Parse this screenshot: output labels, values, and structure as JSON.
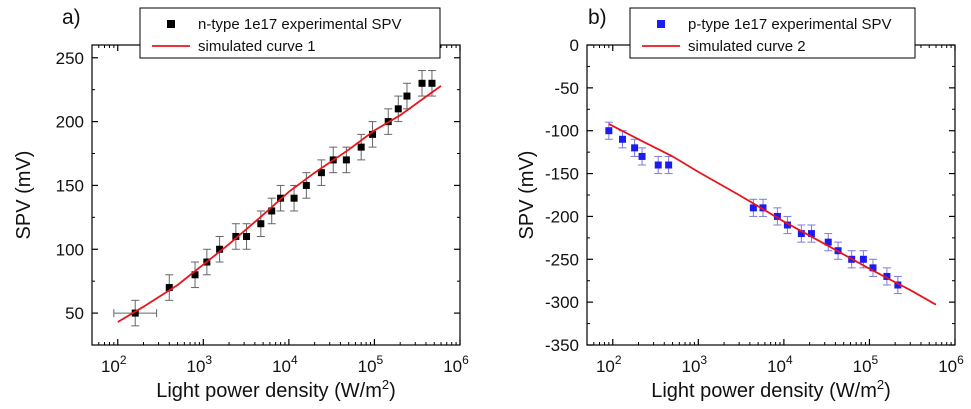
{
  "chart_data": [
    {
      "type": "scatter",
      "panel_label": "a)",
      "xlabel": "Light power density (W/m",
      "xlabel_sup": "2",
      "xlabel_end": ")",
      "ylabel": "SPV (mV)",
      "xscale": "log",
      "xlim": [
        50,
        1000000
      ],
      "ylim": [
        25,
        260
      ],
      "yticks": [
        50,
        100,
        150,
        200,
        250
      ],
      "ytick_labels": [
        "50",
        "100",
        "150",
        "200",
        "250"
      ],
      "xtick_labels": [
        {
          "base": "10",
          "exp": "2"
        },
        {
          "base": "10",
          "exp": "3"
        },
        {
          "base": "10",
          "exp": "4"
        },
        {
          "base": "10",
          "exp": "5"
        },
        {
          "base": "10",
          "exp": "6"
        }
      ],
      "grid": false,
      "legend_position": "top-right",
      "series": [
        {
          "name": "n-type 1e17 experimental SPV",
          "kind": "scatter",
          "color": "#000000",
          "points": [
            {
              "x": 160,
              "y": 50,
              "yerr": 10,
              "xerr": 0.25
            },
            {
              "x": 400,
              "y": 70,
              "yerr": 10
            },
            {
              "x": 800,
              "y": 80,
              "yerr": 10
            },
            {
              "x": 1100,
              "y": 90,
              "yerr": 10
            },
            {
              "x": 1550,
              "y": 100,
              "yerr": 10
            },
            {
              "x": 2400,
              "y": 110,
              "yerr": 10
            },
            {
              "x": 3200,
              "y": 110,
              "yerr": 10
            },
            {
              "x": 4700,
              "y": 120,
              "yerr": 10
            },
            {
              "x": 6300,
              "y": 130,
              "yerr": 10
            },
            {
              "x": 8000,
              "y": 140,
              "yerr": 10
            },
            {
              "x": 11500,
              "y": 140,
              "yerr": 10
            },
            {
              "x": 16000,
              "y": 150,
              "yerr": 10
            },
            {
              "x": 24000,
              "y": 160,
              "yerr": 10
            },
            {
              "x": 33000,
              "y": 170,
              "yerr": 10
            },
            {
              "x": 47000,
              "y": 170,
              "yerr": 10
            },
            {
              "x": 70000,
              "y": 180,
              "yerr": 10
            },
            {
              "x": 95000,
              "y": 190,
              "yerr": 10
            },
            {
              "x": 145000,
              "y": 200,
              "yerr": 10
            },
            {
              "x": 190000,
              "y": 210,
              "yerr": 10
            },
            {
              "x": 240000,
              "y": 220,
              "yerr": 10
            },
            {
              "x": 360000,
              "y": 230,
              "yerr": 10
            },
            {
              "x": 470000,
              "y": 230,
              "yerr": 10
            }
          ]
        },
        {
          "name": "simulated curve 1",
          "kind": "line",
          "color": "#e8141c",
          "points": [
            {
              "x": 100,
              "y": 43
            },
            {
              "x": 200,
              "y": 55
            },
            {
              "x": 500,
              "y": 72
            },
            {
              "x": 1000,
              "y": 88
            },
            {
              "x": 2000,
              "y": 104
            },
            {
              "x": 5000,
              "y": 127
            },
            {
              "x": 10000,
              "y": 145
            },
            {
              "x": 20000,
              "y": 160
            },
            {
              "x": 50000,
              "y": 178
            },
            {
              "x": 100000,
              "y": 193
            },
            {
              "x": 200000,
              "y": 205
            },
            {
              "x": 600000,
              "y": 228
            }
          ]
        }
      ]
    },
    {
      "type": "scatter",
      "panel_label": "b)",
      "xlabel": "Light power density (W/m",
      "xlabel_sup": "2",
      "xlabel_end": ")",
      "ylabel": "SPV (mV)",
      "xscale": "log",
      "xlim": [
        50,
        1000000
      ],
      "ylim": [
        -350,
        0
      ],
      "yticks": [
        0,
        -50,
        -100,
        -150,
        -200,
        -250,
        -300,
        -350
      ],
      "ytick_labels": [
        "0",
        "-50",
        "-100",
        "-150",
        "-200",
        "-250",
        "-300",
        "-350"
      ],
      "xtick_labels": [
        {
          "base": "10",
          "exp": "2"
        },
        {
          "base": "10",
          "exp": "3"
        },
        {
          "base": "10",
          "exp": "4"
        },
        {
          "base": "10",
          "exp": "5"
        },
        {
          "base": "10",
          "exp": "6"
        }
      ],
      "grid": false,
      "legend_position": "top-right",
      "series": [
        {
          "name": "p-type 1e17 experimental SPV",
          "kind": "scatter",
          "color": "#1c1cf0",
          "points": [
            {
              "x": 90,
              "y": -100,
              "yerr": 10
            },
            {
              "x": 130,
              "y": -110,
              "yerr": 10
            },
            {
              "x": 180,
              "y": -120,
              "yerr": 10
            },
            {
              "x": 220,
              "y": -130,
              "yerr": 10
            },
            {
              "x": 340,
              "y": -140,
              "yerr": 10
            },
            {
              "x": 450,
              "y": -140,
              "yerr": 10
            },
            {
              "x": 4400,
              "y": -190,
              "yerr": 10
            },
            {
              "x": 5700,
              "y": -190,
              "yerr": 10
            },
            {
              "x": 8400,
              "y": -200,
              "yerr": 10
            },
            {
              "x": 11000,
              "y": -210,
              "yerr": 10
            },
            {
              "x": 16000,
              "y": -220,
              "yerr": 10
            },
            {
              "x": 21000,
              "y": -220,
              "yerr": 10
            },
            {
              "x": 33000,
              "y": -230,
              "yerr": 10
            },
            {
              "x": 43000,
              "y": -240,
              "yerr": 10
            },
            {
              "x": 62000,
              "y": -250,
              "yerr": 10
            },
            {
              "x": 85000,
              "y": -250,
              "yerr": 10
            },
            {
              "x": 110000,
              "y": -260,
              "yerr": 10
            },
            {
              "x": 160000,
              "y": -270,
              "yerr": 10
            },
            {
              "x": 215000,
              "y": -280,
              "yerr": 10
            }
          ]
        },
        {
          "name": "simulated curve 2",
          "kind": "line",
          "color": "#e8141c",
          "points": [
            {
              "x": 90,
              "y": -92
            },
            {
              "x": 200,
              "y": -110
            },
            {
              "x": 500,
              "y": -130
            },
            {
              "x": 1000,
              "y": -148
            },
            {
              "x": 3000,
              "y": -175
            },
            {
              "x": 10000,
              "y": -206
            },
            {
              "x": 30000,
              "y": -232
            },
            {
              "x": 100000,
              "y": -261
            },
            {
              "x": 300000,
              "y": -286
            },
            {
              "x": 600000,
              "y": -303
            }
          ]
        }
      ]
    }
  ]
}
